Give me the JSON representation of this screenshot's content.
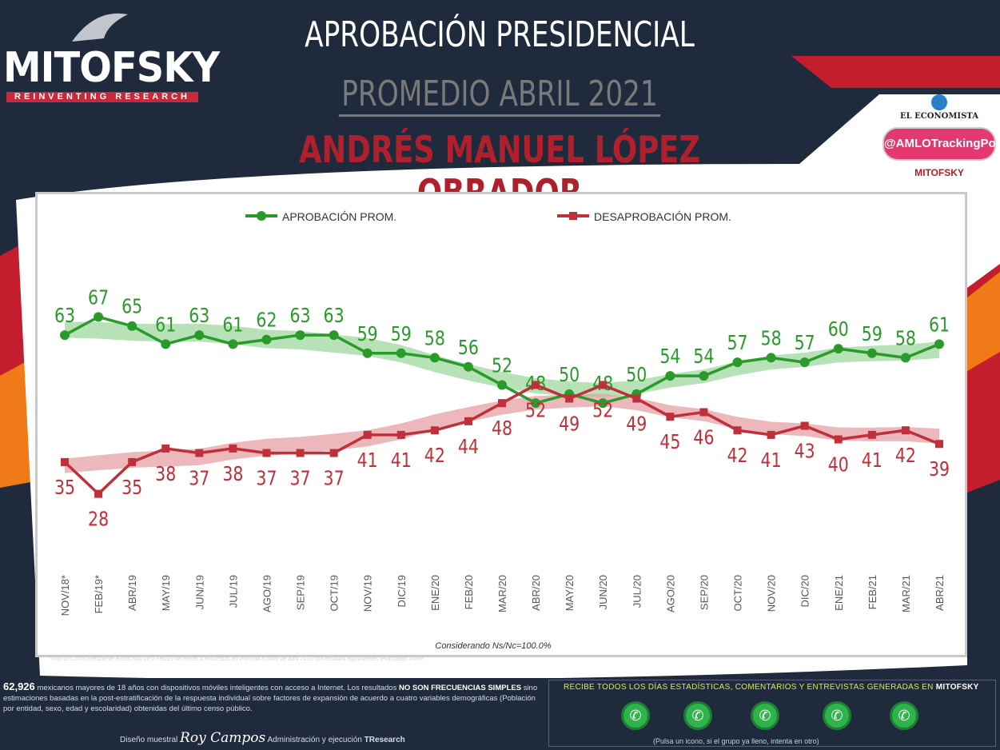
{
  "header": {
    "logo_text": "MITOFSKY",
    "logo_tagline": "REINVENTING RESEARCH",
    "title": "APROBACIÓN PRESIDENCIAL",
    "subtitle": "PROMEDIO ABRIL 2021",
    "person": "ANDRÉS MANUEL LÓPEZ OBRADOR"
  },
  "brand": {
    "newspaper": "EL ECONOMISTA",
    "tracking": "@AMLOTrackingPoll",
    "mini_logo": "MITOFSKY"
  },
  "colors": {
    "approval": "#2a9a2a",
    "disapproval": "#c0303a",
    "approval_band": "#9fd89f",
    "disapproval_band": "#e6a0a6"
  },
  "chart_data": {
    "type": "line",
    "categories": [
      "NOV/18*",
      "FEB/19*",
      "ABR/19",
      "MAY/19",
      "JUN/19",
      "JUL/19",
      "AGO/19",
      "SEP/19",
      "OCT/19",
      "NOV/19",
      "DIC/19",
      "ENE/20",
      "FEB/20",
      "MAR/20",
      "ABR/20",
      "MAY/20",
      "JUN/20",
      "JUL/20",
      "AGO/20",
      "SEP/20",
      "OCT/20",
      "NOV/20",
      "DIC/20",
      "ENE/21",
      "FEB/21",
      "MAR/21",
      "ABR/21"
    ],
    "series": [
      {
        "name": "APROBACIÓN PROM.",
        "values": [
          63,
          67,
          65,
          61,
          63,
          61,
          62,
          63,
          63,
          59,
          59,
          58,
          56,
          52,
          48,
          50,
          48,
          50,
          54,
          54,
          57,
          58,
          57,
          60,
          59,
          58,
          61
        ]
      },
      {
        "name": "DESAPROBACIÓN PROM.",
        "values": [
          35,
          28,
          35,
          38,
          37,
          38,
          37,
          37,
          37,
          41,
          41,
          42,
          44,
          48,
          52,
          49,
          52,
          49,
          45,
          46,
          42,
          41,
          43,
          40,
          41,
          42,
          39
        ]
      }
    ],
    "ylim": [
      20,
      75
    ],
    "note": "Considerando Ns/Nc=100.0%"
  },
  "footer": {
    "footnote": "*Nov/18 Como Presidente electo Nov/18 y Feb/19 de eferes a encuestas en vivienda a partir de abril 2019 son estudios equivalentes levantados online",
    "sample_count": "62,926",
    "info_a": "mexicanos mayores de 18 años con dispositivos móviles inteligentes con acceso a Internet. Los resultados",
    "info_bold": "NO SON FRECUENCIAS SIMPLES",
    "info_b": "sino estimaciones basadas en la post-estratificación de la respuesta individual sobre factores de expansión de acuerdo a cuatro variables demográficas (Población por entidad, sexo, edad y escolaridad) obtenidas del último censo público.",
    "design_label": "Diseño muestral",
    "signature": "Roy Campos",
    "admin_label": "Administración y ejecución",
    "partner": "TResearch",
    "cta_text": "RECIBE TODOS LOS DÍAS ESTADÍSTICAS, COMENTARIOS Y ENTREVISTAS GENERADAS EN",
    "cta_brand": "MITOFSKY",
    "cta_sub": "(Pulsa un icono, si el grupo ya lleno, intenta en otro)"
  }
}
